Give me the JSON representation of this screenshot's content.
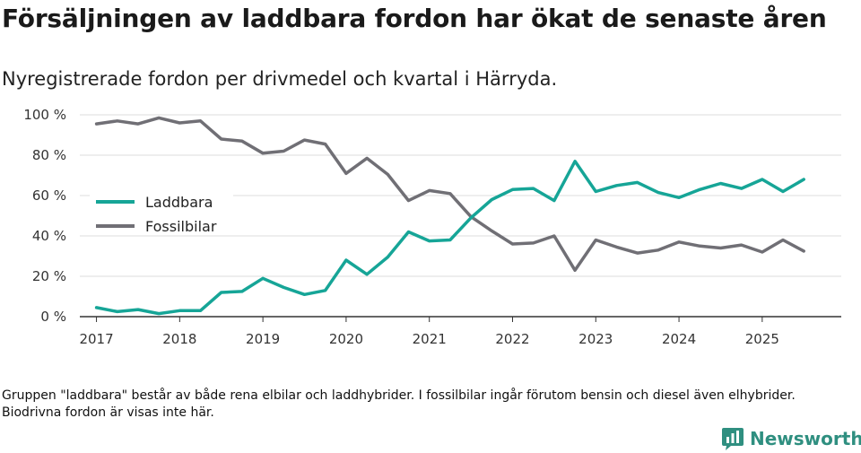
{
  "title": "Försäljningen av laddbara fordon har ökat de senaste åren",
  "subtitle": "Nyregistrerade fordon per drivmedel och kvartal i Härryda.",
  "footnote": "Gruppen \"laddbara\" består av både rena elbilar och laddhybrider. I fossilbilar ingår förutom bensin och diesel även elhybrider. Biodrivna fordon är visas inte här.",
  "brand": "Newsworthy",
  "colors": {
    "laddbara": "#16a597",
    "fossilbilar": "#706f75",
    "grid": "#dddddd",
    "axis": "#333333",
    "brand": "#2f8f80"
  },
  "chart_data": {
    "type": "line",
    "title": "Försäljningen av laddbara fordon har ökat de senaste åren",
    "xlabel": "",
    "ylabel": "",
    "x": [
      2017.0,
      2017.25,
      2017.5,
      2017.75,
      2018.0,
      2018.25,
      2018.5,
      2018.75,
      2019.0,
      2019.25,
      2019.5,
      2019.75,
      2020.0,
      2020.25,
      2020.5,
      2020.75,
      2021.0,
      2021.25,
      2021.5,
      2021.75,
      2022.0,
      2022.25,
      2022.5,
      2022.75,
      2023.0,
      2023.25,
      2023.5,
      2023.75,
      2024.0,
      2024.25,
      2024.5,
      2024.75,
      2025.0,
      2025.25,
      2025.5
    ],
    "xlim": [
      2016.8,
      2025.95
    ],
    "ylim": [
      0,
      100
    ],
    "xticks": [
      2017,
      2018,
      2019,
      2020,
      2021,
      2022,
      2023,
      2024,
      2025
    ],
    "xtick_labels": [
      "2017",
      "2018",
      "2019",
      "2020",
      "2021",
      "2022",
      "2023",
      "2024",
      "2025"
    ],
    "yticks": [
      0,
      20,
      40,
      60,
      80,
      100
    ],
    "ytick_labels": [
      "0 %",
      "20 %",
      "40 %",
      "60 %",
      "80 %",
      "100 %"
    ],
    "grid": true,
    "legend_position": "left",
    "series": [
      {
        "name": "Laddbara",
        "color": "#16a597",
        "values": [
          4.5,
          2.5,
          3.5,
          1.5,
          3,
          3,
          12,
          12.5,
          19,
          14.5,
          11,
          13,
          28,
          21,
          29.5,
          42,
          37.5,
          38,
          49,
          58,
          63,
          63.5,
          57.5,
          77,
          62,
          65,
          66.5,
          61.5,
          59,
          63,
          66,
          63.5,
          68,
          62,
          68
        ]
      },
      {
        "name": "Fossilbilar",
        "color": "#706f75",
        "values": [
          95.5,
          97,
          95.5,
          98.5,
          96,
          97,
          88,
          87,
          81,
          82,
          87.5,
          85.5,
          71,
          78.5,
          70.5,
          57.5,
          62.5,
          61,
          49.5,
          42.5,
          36,
          36.5,
          40,
          23,
          38,
          34.5,
          31.5,
          33,
          37,
          35,
          34,
          35.5,
          32,
          38,
          32.5
        ]
      }
    ]
  }
}
